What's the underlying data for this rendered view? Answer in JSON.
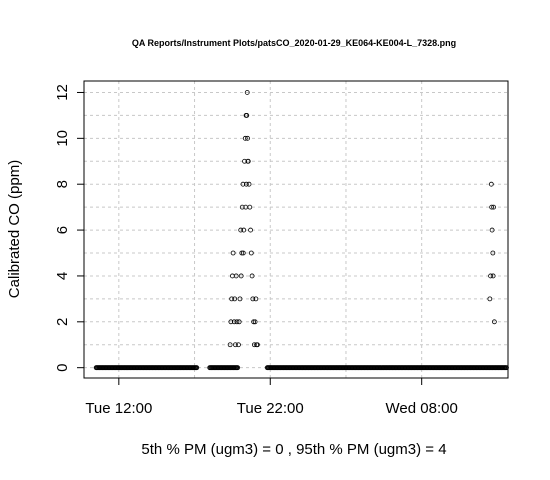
{
  "chart_data": {
    "type": "scatter",
    "title": "QA Reports/Instrument Plots/patsCO_2020-01-29_KE064-KE004-L_7328.png",
    "ylabel": "Calibrated CO (ppm)",
    "xlabel": "",
    "x_ticks": [
      "Tue 12:00",
      "Tue 22:00",
      "Wed 08:00"
    ],
    "x_tick_hours": [
      12,
      22,
      32
    ],
    "y_ticks": [
      0,
      2,
      4,
      6,
      8,
      10,
      12
    ],
    "xlim": [
      9.7,
      37.7
    ],
    "ylim": [
      -0.45,
      12.5
    ],
    "grid": true,
    "note": "5th % PM (ugm3) =  0 , 95th % PM (ugm3)  =  4",
    "baseline_segments": [
      [
        10.5,
        17.2
      ],
      [
        18.0,
        19.9
      ],
      [
        21.8,
        37.6
      ]
    ],
    "points": [
      [
        19.35,
        1
      ],
      [
        19.4,
        2
      ],
      [
        19.45,
        3
      ],
      [
        19.5,
        4
      ],
      [
        19.55,
        5
      ],
      [
        19.62,
        2
      ],
      [
        19.65,
        3
      ],
      [
        19.7,
        1
      ],
      [
        19.75,
        4
      ],
      [
        19.8,
        2
      ],
      [
        19.9,
        1
      ],
      [
        19.95,
        2
      ],
      [
        20.0,
        3
      ],
      [
        20.05,
        6
      ],
      [
        20.08,
        4
      ],
      [
        20.12,
        5
      ],
      [
        20.15,
        7
      ],
      [
        20.2,
        8
      ],
      [
        20.22,
        5
      ],
      [
        20.25,
        6
      ],
      [
        20.3,
        9
      ],
      [
        20.35,
        10
      ],
      [
        20.38,
        7
      ],
      [
        20.4,
        11
      ],
      [
        20.42,
        8
      ],
      [
        20.45,
        11
      ],
      [
        20.48,
        12
      ],
      [
        20.5,
        10
      ],
      [
        20.52,
        9
      ],
      [
        20.55,
        9
      ],
      [
        20.6,
        8
      ],
      [
        20.65,
        7
      ],
      [
        20.7,
        6
      ],
      [
        20.75,
        5
      ],
      [
        20.8,
        4
      ],
      [
        20.85,
        3
      ],
      [
        20.9,
        2
      ],
      [
        20.95,
        1
      ],
      [
        21.0,
        2
      ],
      [
        21.05,
        3
      ],
      [
        21.1,
        1
      ],
      [
        21.15,
        1
      ],
      [
        36.5,
        3
      ],
      [
        36.55,
        4
      ],
      [
        36.6,
        8
      ],
      [
        36.62,
        7
      ],
      [
        36.65,
        6
      ],
      [
        36.7,
        5
      ],
      [
        36.72,
        4
      ],
      [
        36.75,
        7
      ],
      [
        36.8,
        2
      ]
    ]
  }
}
